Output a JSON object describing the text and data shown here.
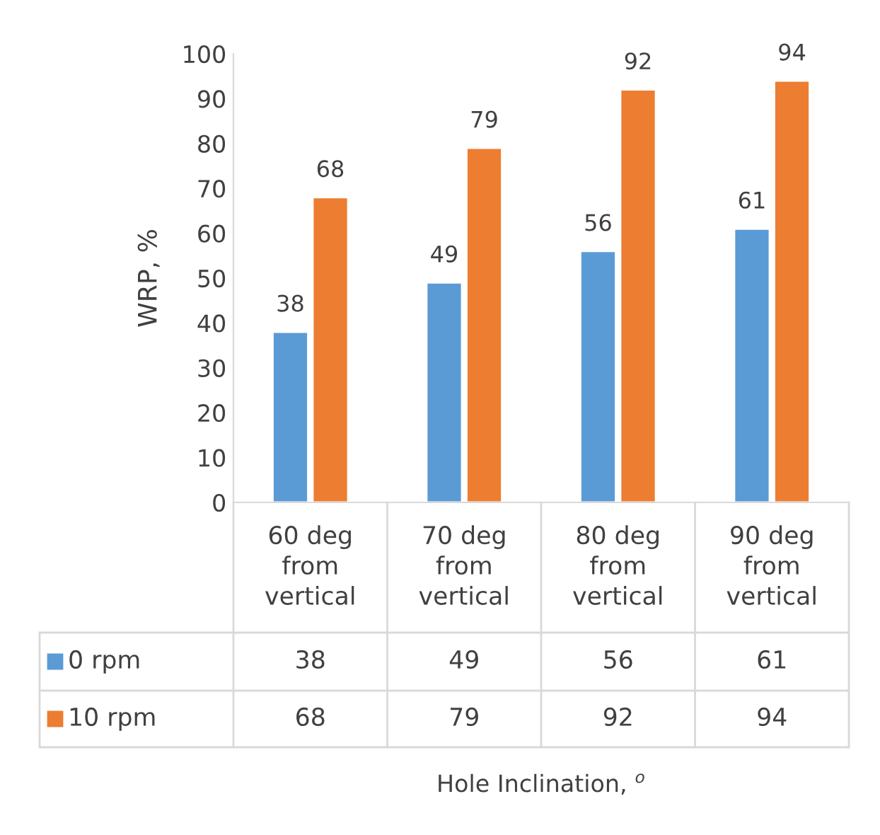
{
  "chart_data": {
    "type": "bar",
    "ylabel": "WRP, %",
    "annotations": [
      "Hole Inclination, $^{o}$",
      "38",
      "49",
      "56",
      "61",
      "68",
      "79",
      "92",
      "94"
    ],
    "categories": [
      "60 deg from vertical",
      "70 deg from vertical",
      "80 deg from vertical",
      "90 deg from vertical"
    ],
    "series": [
      {
        "name": "0 rpm",
        "color": "#5b9bd5",
        "values": [
          38,
          49,
          56,
          61
        ]
      },
      {
        "name": "10 rpm",
        "color": "#ed7d31",
        "values": [
          68,
          79,
          92,
          94
        ]
      }
    ],
    "ylim": [
      0,
      100
    ],
    "yticks": [
      0,
      10,
      20,
      30,
      40,
      50,
      60,
      70,
      80,
      90,
      100
    ],
    "grid": false,
    "data_labels": true,
    "legend": "bottom"
  }
}
